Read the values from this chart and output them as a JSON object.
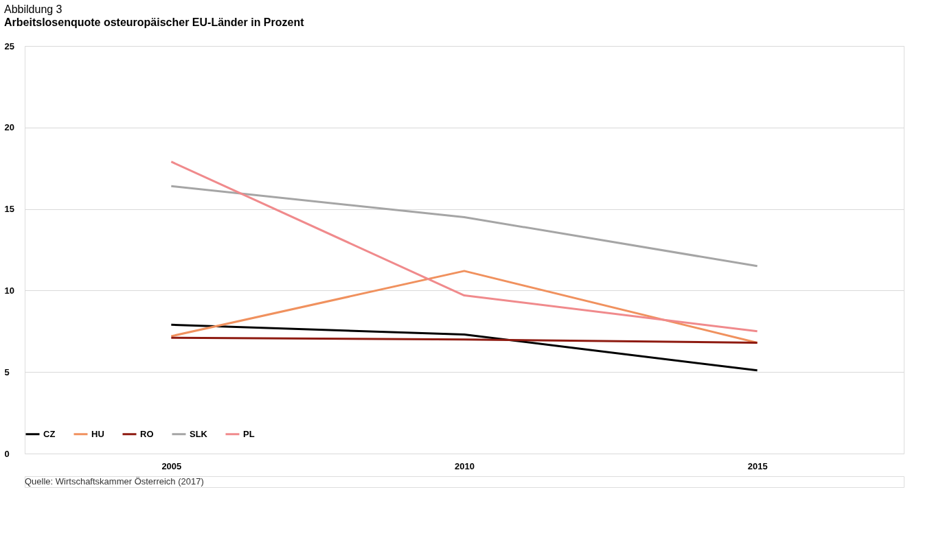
{
  "chart_data": {
    "type": "line",
    "title": "Abbildung 3",
    "subtitle": "Arbeitslosenquote osteuropäischer EU-Länder in Prozent",
    "categories": [
      "2005",
      "2010",
      "2015"
    ],
    "series": [
      {
        "name": "CZ",
        "color": "#000000",
        "values": [
          7.9,
          7.3,
          5.1
        ]
      },
      {
        "name": "HU",
        "color": "#f0915e",
        "values": [
          7.2,
          11.2,
          6.8
        ]
      },
      {
        "name": "RO",
        "color": "#8e1a10",
        "values": [
          7.1,
          7.0,
          6.8
        ]
      },
      {
        "name": "SLK",
        "color": "#a5a5a5",
        "values": [
          16.4,
          14.5,
          11.5
        ]
      },
      {
        "name": "PL",
        "color": "#f08a8c",
        "values": [
          17.9,
          9.7,
          7.5
        ]
      }
    ],
    "ylim": [
      0,
      25
    ],
    "yticks": [
      0,
      5,
      10,
      15,
      20,
      25
    ],
    "grid": "y",
    "legend": "bottom",
    "marker": "none",
    "line_style": "solid",
    "annotations": [
      "Quelle: Wirtschaftskammer Österreich (2017)"
    ]
  }
}
